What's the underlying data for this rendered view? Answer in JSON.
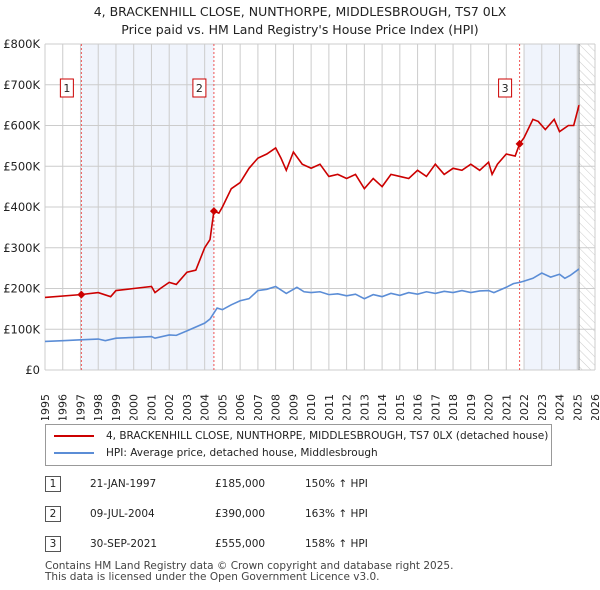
{
  "chart_data": {
    "type": "line",
    "title": "4, BRACKENHILL CLOSE, NUNTHORPE, MIDDLESBROUGH, TS7 0LX",
    "subtitle": "Price paid vs. HM Land Registry's House Price Index (HPI)",
    "xlim": [
      1995,
      2026
    ],
    "ylim": [
      0,
      800000
    ],
    "yticks": [
      {
        "v": 0,
        "l": "£0"
      },
      {
        "v": 100000,
        "l": "£100K"
      },
      {
        "v": 200000,
        "l": "£200K"
      },
      {
        "v": 300000,
        "l": "£300K"
      },
      {
        "v": 400000,
        "l": "£400K"
      },
      {
        "v": 500000,
        "l": "£500K"
      },
      {
        "v": 600000,
        "l": "£600K"
      },
      {
        "v": 700000,
        "l": "£700K"
      },
      {
        "v": 800000,
        "l": "£800K"
      }
    ],
    "xticks": [
      "1995",
      "1996",
      "1997",
      "1998",
      "1999",
      "2000",
      "2001",
      "2002",
      "2003",
      "2004",
      "2005",
      "2006",
      "2007",
      "2008",
      "2009",
      "2010",
      "2011",
      "2012",
      "2013",
      "2014",
      "2015",
      "2016",
      "2017",
      "2018",
      "2019",
      "2020",
      "2021",
      "2022",
      "2023",
      "2024",
      "2025",
      "2026"
    ],
    "series": [
      {
        "name": "4, BRACKENHILL CLOSE, NUNTHORPE, MIDDLESBROUGH, TS7 0LX (detached house)",
        "color": "#cc0000",
        "x": [
          1995,
          1997,
          1998,
          1998.7,
          1999,
          2000,
          2001,
          2001.2,
          2001.5,
          2002,
          2002.4,
          2003,
          2003.5,
          2004,
          2004.3,
          2004.52,
          2004.8,
          2005,
          2005.5,
          2006,
          2006.5,
          2007,
          2007.5,
          2008,
          2008.3,
          2008.6,
          2009,
          2009.5,
          2010,
          2010.5,
          2011,
          2011.5,
          2012,
          2012.5,
          2013,
          2013.5,
          2014,
          2014.5,
          2015,
          2015.5,
          2016,
          2016.5,
          2017,
          2017.5,
          2018,
          2018.5,
          2019,
          2019.5,
          2020,
          2020.2,
          2020.5,
          2021,
          2021.5,
          2021.75,
          2022,
          2022.5,
          2022.8,
          2023.2,
          2023.7,
          2024,
          2024.5,
          2024.8,
          2025.1
        ],
        "y": [
          178000,
          185000,
          190000,
          180000,
          195000,
          200000,
          205000,
          190000,
          200000,
          215000,
          210000,
          240000,
          245000,
          300000,
          320000,
          390000,
          385000,
          400000,
          445000,
          460000,
          495000,
          520000,
          530000,
          545000,
          520000,
          490000,
          535000,
          505000,
          495000,
          505000,
          475000,
          480000,
          470000,
          480000,
          445000,
          470000,
          450000,
          480000,
          475000,
          470000,
          490000,
          475000,
          505000,
          480000,
          495000,
          490000,
          505000,
          490000,
          510000,
          480000,
          505000,
          530000,
          525000,
          555000,
          570000,
          615000,
          610000,
          590000,
          615000,
          585000,
          600000,
          600000,
          650000
        ]
      },
      {
        "name": "HPI: Average price, detached house, Middlesbrough",
        "color": "#5b8dd6",
        "x": [
          1995,
          1996,
          1997,
          1998,
          1998.4,
          1999,
          2000,
          2001,
          2001.2,
          2002,
          2002.4,
          2003,
          2004,
          2004.3,
          2004.7,
          2005,
          2005.5,
          2006,
          2006.5,
          2007,
          2007.5,
          2008,
          2008.6,
          2009.2,
          2009.6,
          2010,
          2010.5,
          2011,
          2011.5,
          2012,
          2012.5,
          2013,
          2013.5,
          2014,
          2014.5,
          2015,
          2015.5,
          2016,
          2016.5,
          2017,
          2017.5,
          2018,
          2018.5,
          2019,
          2019.5,
          2020,
          2020.3,
          2021,
          2021.4,
          2021.75,
          2022,
          2022.5,
          2023,
          2023.5,
          2024,
          2024.3,
          2024.6,
          2025.1
        ],
        "y": [
          70000,
          72000,
          74000,
          76000,
          72000,
          78000,
          80000,
          82000,
          78000,
          86000,
          85000,
          96000,
          115000,
          125000,
          152000,
          148000,
          160000,
          170000,
          175000,
          195000,
          198000,
          205000,
          188000,
          203000,
          192000,
          190000,
          192000,
          185000,
          187000,
          182000,
          186000,
          175000,
          185000,
          180000,
          188000,
          183000,
          190000,
          186000,
          192000,
          188000,
          193000,
          190000,
          195000,
          190000,
          194000,
          195000,
          190000,
          203000,
          212000,
          215000,
          218000,
          225000,
          238000,
          228000,
          235000,
          225000,
          232000,
          248000
        ]
      }
    ],
    "sales": [
      {
        "n": "1",
        "x": 1997.05,
        "y": 185000
      },
      {
        "n": "2",
        "x": 2004.52,
        "y": 390000
      },
      {
        "n": "3",
        "x": 2021.75,
        "y": 555000
      }
    ],
    "shaded": [
      [
        1997.05,
        2004.52
      ],
      [
        2022,
        2025.1
      ]
    ],
    "hatched_from": 2025.1
  },
  "legend": {
    "red": "4, BRACKENHILL CLOSE, NUNTHORPE, MIDDLESBROUGH, TS7 0LX (detached house)",
    "blue": "HPI: Average price, detached house, Middlesbrough"
  },
  "table": [
    {
      "n": "1",
      "date": "21-JAN-1997",
      "price": "£185,000",
      "hpi": "150% ↑ HPI"
    },
    {
      "n": "2",
      "date": "09-JUL-2004",
      "price": "£390,000",
      "hpi": "163% ↑ HPI"
    },
    {
      "n": "3",
      "date": "30-SEP-2021",
      "price": "£555,000",
      "hpi": "158% ↑ HPI"
    }
  ],
  "footer": [
    "Contains HM Land Registry data © Crown copyright and database right 2025.",
    "This data is licensed under the Open Government Licence v3.0."
  ]
}
